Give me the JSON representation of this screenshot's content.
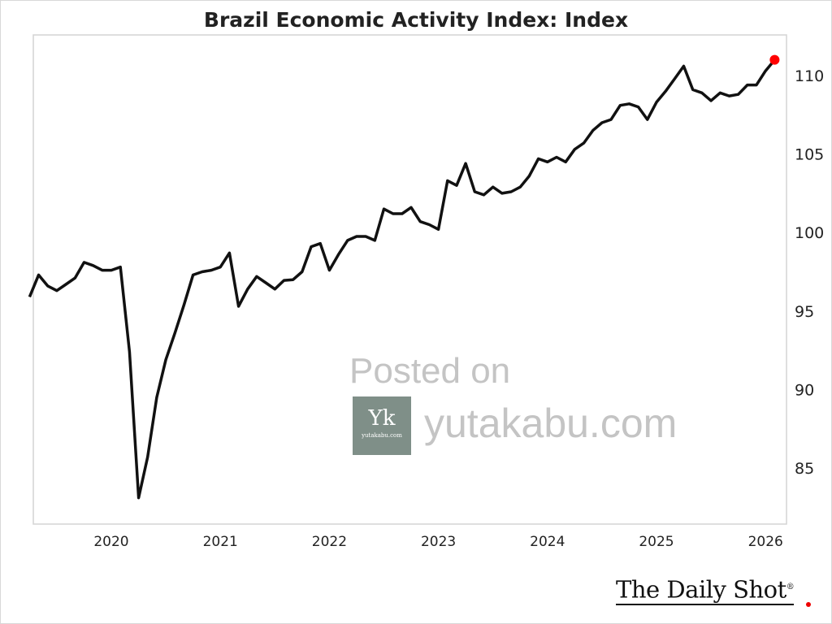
{
  "chart_data": {
    "type": "line",
    "title": "Brazil Economic Activity Index: Index",
    "xlabel": "",
    "ylabel": "",
    "start_month": "2019-04",
    "frequency": "monthly",
    "x_ticks": [
      "2020",
      "2021",
      "2022",
      "2023",
      "2024",
      "2025",
      "2026"
    ],
    "y_ticks": [
      85,
      90,
      95,
      100,
      105,
      110
    ],
    "ylim": [
      81.5,
      112.5
    ],
    "xlim": [
      2019.28,
      2026.2
    ],
    "grid": false,
    "y_axis_side": "right",
    "line_color": "#111111",
    "last_point_color": "#ff0000",
    "series": [
      {
        "name": "Brazil Economic Activity Index",
        "values": [
          95.9,
          97.3,
          96.6,
          96.3,
          96.7,
          97.1,
          98.1,
          97.9,
          97.6,
          97.6,
          97.8,
          92.4,
          83.1,
          85.7,
          89.5,
          91.9,
          93.6,
          95.4,
          97.3,
          97.5,
          97.6,
          97.8,
          98.7,
          95.3,
          96.4,
          97.2,
          96.8,
          96.4,
          96.95,
          97.0,
          97.5,
          99.1,
          99.3,
          97.6,
          98.6,
          99.5,
          99.75,
          99.75,
          99.5,
          101.5,
          101.2,
          101.2,
          101.6,
          100.7,
          100.5,
          100.2,
          103.3,
          103.0,
          104.4,
          102.6,
          102.4,
          102.9,
          102.5,
          102.6,
          102.9,
          103.6,
          104.7,
          104.5,
          104.8,
          104.5,
          105.3,
          105.7,
          106.5,
          107.0,
          107.2,
          108.1,
          108.2,
          108.0,
          107.2,
          108.3,
          109.0,
          109.8,
          110.6,
          109.1,
          108.9,
          108.4,
          108.9,
          108.7,
          108.8,
          109.4,
          109.4,
          110.3,
          111.0
        ]
      }
    ]
  },
  "watermark": {
    "posted_on": "Posted on",
    "site": "yutakabu.com",
    "logo_mark": "Yk",
    "logo_small": "yutakabu.com"
  },
  "branding": {
    "logo": "The Daily Shot",
    "reg": "®"
  }
}
